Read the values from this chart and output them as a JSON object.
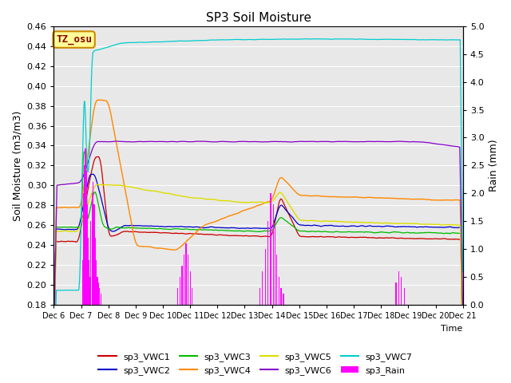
{
  "title": "SP3 Soil Moisture",
  "ylabel_left": "Soil Moisture (m3/m3)",
  "ylabel_right": "Rain (mm)",
  "xlabel": "Time",
  "ylim_left": [
    0.18,
    0.46
  ],
  "ylim_right": [
    0.0,
    5.0
  ],
  "xtick_labels": [
    "Dec 6",
    "Dec 7",
    "Dec 8",
    "Dec 9",
    "Dec 10",
    "Dec 11",
    "Dec 12",
    "Dec 13",
    "Dec 14",
    "Dec 15",
    "Dec 16",
    "Dec 17",
    "Dec 18",
    "Dec 19",
    "Dec 20",
    "Dec 21"
  ],
  "background_color": "#e8e8e8",
  "plot_bg_color": "#e8e8e8",
  "colors": {
    "sp3_VWC1": "#cc0000",
    "sp3_VWC2": "#0000cc",
    "sp3_VWC3": "#00bb00",
    "sp3_VWC4": "#ff8800",
    "sp3_VWC5": "#dddd00",
    "sp3_VWC6": "#8800cc",
    "sp3_VWC7": "#00cccc",
    "sp3_Rain": "#ff00ff"
  },
  "annotation_box": {
    "text": "TZ_osu",
    "facecolor": "#ffff99",
    "edgecolor": "#cc8800",
    "textcolor": "#880000"
  }
}
